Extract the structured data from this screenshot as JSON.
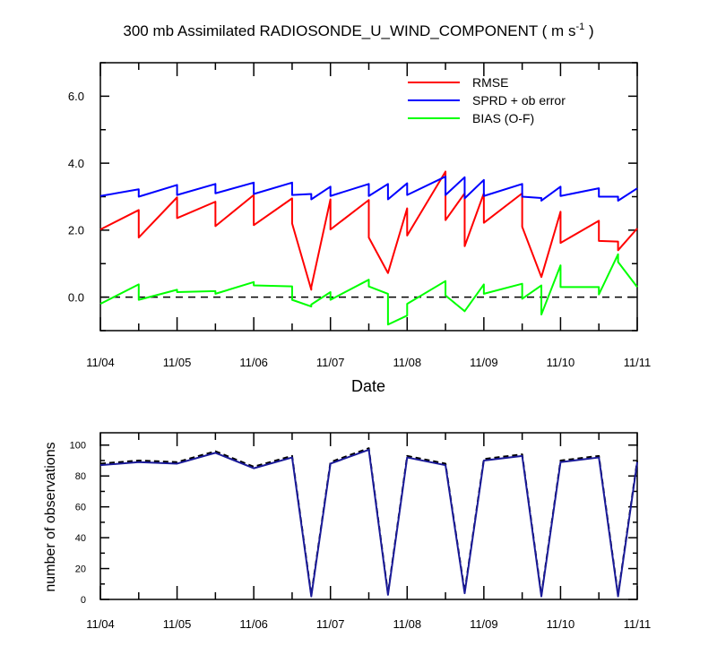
{
  "chart_data": [
    {
      "type": "line",
      "title": "300 mb Assimilated RADIOSONDE_U_WIND_COMPONENT ( m s",
      "title_unit_exp": "-1",
      "title_close": " )",
      "xlabel": "Date",
      "ylabel": "",
      "xlim": [
        0,
        7
      ],
      "ylim": [
        -1,
        7
      ],
      "x_tick_labels": [
        "11/04",
        "11/05",
        "11/06",
        "11/07",
        "11/08",
        "11/09",
        "11/10",
        "11/11"
      ],
      "y_tick_labels": [
        "0.0",
        "2.0",
        "4.0",
        "6.0"
      ],
      "y_tick_values": [
        0,
        2,
        4,
        6
      ],
      "grid": false,
      "legend_position": "top-right",
      "reference_line": {
        "y": 0,
        "style": "dashed",
        "color": "#000000"
      },
      "series": [
        {
          "name": "RMSE",
          "color": "#ff0000",
          "points": [
            [
              0,
              2.02
            ],
            [
              0.5,
              2.6
            ],
            [
              0.5,
              1.78
            ],
            [
              1,
              2.98
            ],
            [
              1,
              2.36
            ],
            [
              1.5,
              2.85
            ],
            [
              1.5,
              2.12
            ],
            [
              2,
              3.05
            ],
            [
              2,
              2.15
            ],
            [
              2.5,
              2.95
            ],
            [
              2.5,
              2.2
            ],
            [
              2.75,
              0.22
            ],
            [
              2.75,
              0.3
            ],
            [
              3,
              2.92
            ],
            [
              3,
              2.02
            ],
            [
              3.5,
              2.9
            ],
            [
              3.5,
              1.78
            ],
            [
              3.75,
              0.72
            ],
            [
              4,
              2.65
            ],
            [
              4,
              1.84
            ],
            [
              4.5,
              3.75
            ],
            [
              4.5,
              2.3
            ],
            [
              4.75,
              3.1
            ],
            [
              4.75,
              1.52
            ],
            [
              5,
              3.1
            ],
            [
              5,
              2.22
            ],
            [
              5.5,
              3.1
            ],
            [
              5.5,
              2.1
            ],
            [
              5.75,
              0.6
            ],
            [
              6,
              2.55
            ],
            [
              6,
              1.62
            ],
            [
              6.5,
              2.28
            ],
            [
              6.5,
              1.68
            ],
            [
              6.75,
              1.66
            ],
            [
              6.75,
              1.4
            ],
            [
              7,
              2.05
            ]
          ]
        },
        {
          "name": "SPRD + ob error",
          "color": "#0000ff",
          "points": [
            [
              0,
              3.02
            ],
            [
              0.5,
              3.22
            ],
            [
              0.5,
              3.0
            ],
            [
              1,
              3.35
            ],
            [
              1,
              3.05
            ],
            [
              1.5,
              3.38
            ],
            [
              1.5,
              3.1
            ],
            [
              2,
              3.42
            ],
            [
              2,
              3.08
            ],
            [
              2.5,
              3.42
            ],
            [
              2.5,
              3.05
            ],
            [
              2.75,
              3.08
            ],
            [
              2.75,
              2.92
            ],
            [
              3,
              3.3
            ],
            [
              3,
              3.02
            ],
            [
              3.5,
              3.38
            ],
            [
              3.5,
              3.02
            ],
            [
              3.75,
              3.38
            ],
            [
              3.75,
              2.92
            ],
            [
              4,
              3.4
            ],
            [
              4,
              3.05
            ],
            [
              4.5,
              3.6
            ],
            [
              4.5,
              3.05
            ],
            [
              4.75,
              3.58
            ],
            [
              4.75,
              2.95
            ],
            [
              5,
              3.5
            ],
            [
              5,
              3.02
            ],
            [
              5.5,
              3.38
            ],
            [
              5.5,
              3.0
            ],
            [
              5.75,
              2.96
            ],
            [
              5.75,
              2.88
            ],
            [
              6,
              3.3
            ],
            [
              6,
              3.02
            ],
            [
              6.5,
              3.25
            ],
            [
              6.5,
              3.0
            ],
            [
              6.75,
              3.0
            ],
            [
              6.75,
              2.88
            ],
            [
              7,
              3.25
            ]
          ]
        },
        {
          "name": "BIAS (O-F)",
          "color": "#00ff00",
          "points": [
            [
              0,
              -0.2
            ],
            [
              0.5,
              0.38
            ],
            [
              0.5,
              -0.08
            ],
            [
              1,
              0.22
            ],
            [
              1,
              0.15
            ],
            [
              1.5,
              0.18
            ],
            [
              1.5,
              0.1
            ],
            [
              2,
              0.45
            ],
            [
              2,
              0.35
            ],
            [
              2.5,
              0.32
            ],
            [
              2.5,
              -0.08
            ],
            [
              2.75,
              -0.28
            ],
            [
              2.75,
              -0.22
            ],
            [
              3,
              0.15
            ],
            [
              3,
              -0.08
            ],
            [
              3.5,
              0.52
            ],
            [
              3.5,
              0.32
            ],
            [
              3.75,
              0.1
            ],
            [
              3.75,
              -0.82
            ],
            [
              4,
              -0.55
            ],
            [
              4,
              -0.2
            ],
            [
              4.5,
              0.48
            ],
            [
              4.5,
              0.05
            ],
            [
              4.75,
              -0.42
            ],
            [
              5,
              0.38
            ],
            [
              5,
              0.1
            ],
            [
              5.5,
              0.4
            ],
            [
              5.5,
              -0.05
            ],
            [
              5.75,
              0.35
            ],
            [
              5.75,
              -0.52
            ],
            [
              6,
              0.95
            ],
            [
              6,
              0.3
            ],
            [
              6.5,
              0.3
            ],
            [
              6.5,
              0.08
            ],
            [
              6.75,
              1.28
            ],
            [
              6.75,
              1.05
            ],
            [
              7,
              0.3
            ]
          ]
        }
      ]
    },
    {
      "type": "line",
      "title": "",
      "xlabel": "",
      "ylabel": "number of observations",
      "xlim": [
        0,
        7
      ],
      "ylim": [
        0,
        108
      ],
      "x_tick_labels": [
        "11/04",
        "11/05",
        "11/06",
        "11/07",
        "11/08",
        "11/09",
        "11/10",
        "11/11"
      ],
      "y_tick_labels": [
        "0",
        "20",
        "40",
        "60",
        "80",
        "100"
      ],
      "y_tick_values": [
        0,
        20,
        40,
        60,
        80,
        100
      ],
      "grid": false,
      "legend_position": "none",
      "series": [
        {
          "line_style": "dashed",
          "color": "#000000",
          "points": [
            [
              0,
              88
            ],
            [
              0.5,
              90
            ],
            [
              1,
              89
            ],
            [
              1.5,
              96
            ],
            [
              2,
              86
            ],
            [
              2.5,
              93
            ],
            [
              2.75,
              3
            ],
            [
              3,
              89
            ],
            [
              3.5,
              98
            ],
            [
              3.75,
              4
            ],
            [
              4,
              93
            ],
            [
              4.5,
              88
            ],
            [
              4.75,
              5
            ],
            [
              5,
              91
            ],
            [
              5.5,
              94
            ],
            [
              5.75,
              3
            ],
            [
              6,
              90
            ],
            [
              6.5,
              93
            ],
            [
              6.75,
              3
            ],
            [
              7,
              90
            ]
          ]
        },
        {
          "line_style": "solid",
          "color": "#1a1a99",
          "points": [
            [
              0,
              87
            ],
            [
              0.5,
              89
            ],
            [
              1,
              88
            ],
            [
              1.5,
              95
            ],
            [
              2,
              85
            ],
            [
              2.5,
              92
            ],
            [
              2.75,
              2
            ],
            [
              3,
              88
            ],
            [
              3.5,
              97
            ],
            [
              3.75,
              3
            ],
            [
              4,
              92
            ],
            [
              4.5,
              87
            ],
            [
              4.75,
              4
            ],
            [
              5,
              90
            ],
            [
              5.5,
              93
            ],
            [
              5.75,
              2
            ],
            [
              6,
              89
            ],
            [
              6.5,
              92
            ],
            [
              6.75,
              2
            ],
            [
              7,
              89
            ]
          ]
        }
      ]
    }
  ]
}
